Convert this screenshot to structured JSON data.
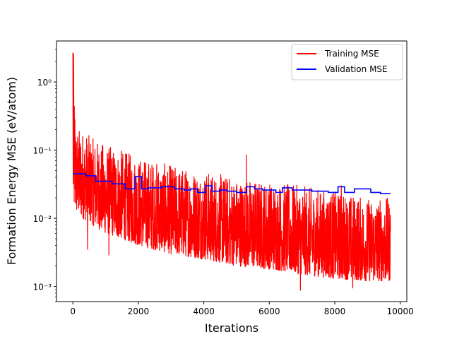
{
  "chart_data": {
    "type": "line",
    "title": "",
    "xlabel": "Iterations",
    "ylabel": "Formation Energy MSE (eV/atom)",
    "xlim": [
      -500,
      10200
    ],
    "ylim": [
      0.0006,
      4.0
    ],
    "yscale": "log",
    "grid": false,
    "legend_position": "top-right",
    "x_ticks": [
      0,
      2000,
      4000,
      6000,
      8000,
      10000
    ],
    "x_tick_labels": [
      "0",
      "2000",
      "4000",
      "6000",
      "8000",
      "10000"
    ],
    "y_ticks": [
      0.001,
      0.01,
      0.1,
      1
    ],
    "y_tick_labels": [
      "10⁻³",
      "10⁻²",
      "10⁻¹",
      "10⁰"
    ],
    "series": [
      {
        "name": "Training MSE",
        "color": "#ff0000",
        "envelope": {
          "x": [
            0,
            100,
            300,
            600,
            1000,
            1500,
            2000,
            3000,
            4000,
            5000,
            6000,
            7000,
            8000,
            9000,
            9700
          ],
          "upper": [
            2.7,
            0.22,
            0.2,
            0.15,
            0.12,
            0.1,
            0.08,
            0.06,
            0.05,
            0.04,
            0.035,
            0.03,
            0.025,
            0.02,
            0.02
          ],
          "lower": [
            0.012,
            0.012,
            0.01,
            0.008,
            0.006,
            0.005,
            0.004,
            0.003,
            0.0025,
            0.002,
            0.0018,
            0.0015,
            0.0013,
            0.0012,
            0.0012
          ]
        },
        "spikes": [
          {
            "x": 0,
            "y": 2.7
          },
          {
            "x": 20,
            "y": 2.6
          },
          {
            "x": 60,
            "y": 0.28
          },
          {
            "x": 450,
            "y": 0.0035
          },
          {
            "x": 1100,
            "y": 0.0029
          },
          {
            "x": 5300,
            "y": 0.085
          },
          {
            "x": 6950,
            "y": 0.00088
          },
          {
            "x": 8200,
            "y": 0.03
          },
          {
            "x": 8550,
            "y": 0.00095
          }
        ]
      },
      {
        "name": "Validation MSE",
        "color": "#0000ff",
        "x": [
          0,
          400,
          400,
          700,
          700,
          1200,
          1200,
          1600,
          1600,
          1900,
          1900,
          2100,
          2100,
          2300,
          2300,
          2700,
          2700,
          3100,
          3100,
          3400,
          3400,
          3600,
          3600,
          3800,
          3800,
          4050,
          4050,
          4250,
          4250,
          4500,
          4500,
          4700,
          4700,
          5000,
          5000,
          5300,
          5300,
          5550,
          5550,
          5800,
          5800,
          6200,
          6200,
          6400,
          6400,
          6700,
          6700,
          7300,
          7300,
          7800,
          7800,
          8100,
          8100,
          8300,
          8300,
          8600,
          8600,
          9100,
          9100,
          9400,
          9400,
          9700
        ],
        "y": [
          0.045,
          0.045,
          0.042,
          0.042,
          0.035,
          0.035,
          0.032,
          0.032,
          0.027,
          0.027,
          0.041,
          0.041,
          0.027,
          0.027,
          0.028,
          0.028,
          0.029,
          0.029,
          0.027,
          0.027,
          0.026,
          0.026,
          0.027,
          0.027,
          0.024,
          0.024,
          0.03,
          0.03,
          0.025,
          0.025,
          0.026,
          0.026,
          0.025,
          0.025,
          0.024,
          0.024,
          0.029,
          0.029,
          0.027,
          0.027,
          0.026,
          0.026,
          0.024,
          0.024,
          0.028,
          0.028,
          0.026,
          0.026,
          0.025,
          0.025,
          0.024,
          0.024,
          0.029,
          0.029,
          0.024,
          0.024,
          0.027,
          0.027,
          0.024,
          0.024,
          0.023,
          0.023
        ]
      }
    ]
  }
}
